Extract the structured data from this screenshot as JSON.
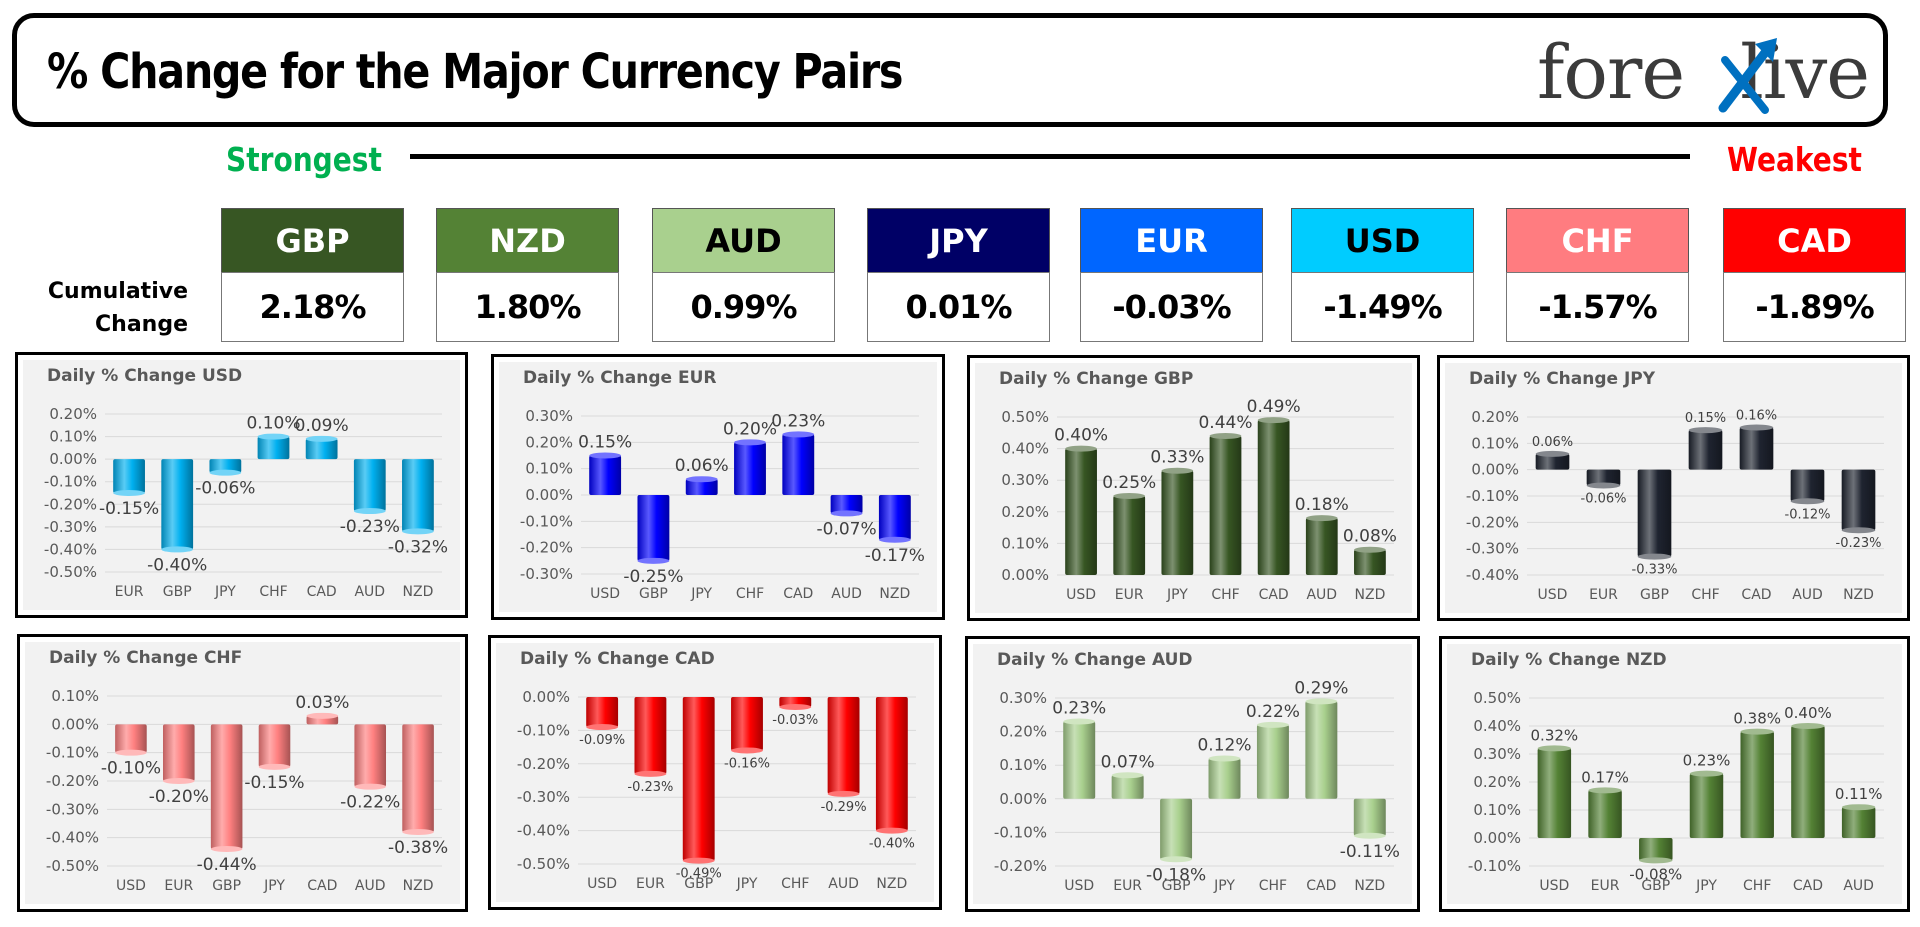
{
  "header": {
    "title": "% Change for the Major Currency Pairs",
    "logo_text_left": "fore",
    "logo_text_right": "live"
  },
  "strength": {
    "strongest": "Strongest",
    "weakest": "Weakest"
  },
  "cumulative": {
    "label_line1": "Cumulative",
    "label_line2": "Change",
    "currencies": [
      {
        "code": "GBP",
        "value": "2.18%",
        "bg": "#375623",
        "fg": "#ffffff"
      },
      {
        "code": "NZD",
        "value": "1.80%",
        "bg": "#548235",
        "fg": "#ffffff"
      },
      {
        "code": "AUD",
        "value": "0.99%",
        "bg": "#a9d08e",
        "fg": "#000000"
      },
      {
        "code": "JPY",
        "value": "0.01%",
        "bg": "#000066",
        "fg": "#ffffff"
      },
      {
        "code": "EUR",
        "value": "-0.03%",
        "bg": "#0066ff",
        "fg": "#ffffff"
      },
      {
        "code": "USD",
        "value": "-1.49%",
        "bg": "#00ccff",
        "fg": "#000000"
      },
      {
        "code": "CHF",
        "value": "-1.57%",
        "bg": "#ff7c80",
        "fg": "#ffffff"
      },
      {
        "code": "CAD",
        "value": "-1.89%",
        "bg": "#ff0000",
        "fg": "#ffffff"
      }
    ]
  },
  "chart_data": [
    {
      "type": "bar",
      "title": "Daily % Change USD",
      "color": "#00b0f0",
      "label_size": "large",
      "categories": [
        "EUR",
        "GBP",
        "JPY",
        "CHF",
        "CAD",
        "AUD",
        "NZD"
      ],
      "values": [
        -0.15,
        -0.4,
        -0.06,
        0.1,
        0.09,
        -0.23,
        -0.32
      ],
      "labels": [
        "-0.15%",
        "-0.40%",
        "-0.06%",
        "0.10%",
        "0.09%",
        "-0.23%",
        "-0.32%"
      ],
      "ylim": [
        -0.5,
        0.2
      ],
      "ystep": 0.1,
      "yticks": [
        "0.20%",
        "0.10%",
        "0.00%",
        "-0.10%",
        "-0.20%",
        "-0.30%",
        "-0.40%",
        "-0.50%"
      ]
    },
    {
      "type": "bar",
      "title": "Daily % Change EUR",
      "color": "#0000ff",
      "label_size": "large",
      "categories": [
        "USD",
        "GBP",
        "JPY",
        "CHF",
        "CAD",
        "AUD",
        "NZD"
      ],
      "values": [
        0.15,
        -0.25,
        0.06,
        0.2,
        0.23,
        -0.07,
        -0.17
      ],
      "labels": [
        "0.15%",
        "-0.25%",
        "0.06%",
        "0.20%",
        "0.23%",
        "-0.07%",
        "-0.17%"
      ],
      "ylim": [
        -0.3,
        0.3
      ],
      "ystep": 0.1,
      "yticks": [
        "0.30%",
        "0.20%",
        "0.10%",
        "0.00%",
        "-0.10%",
        "-0.20%",
        "-0.30%"
      ]
    },
    {
      "type": "bar",
      "title": "Daily % Change GBP",
      "color": "#375623",
      "label_size": "large",
      "categories": [
        "USD",
        "EUR",
        "JPY",
        "CHF",
        "CAD",
        "AUD",
        "NZD"
      ],
      "values": [
        0.4,
        0.25,
        0.33,
        0.44,
        0.49,
        0.18,
        0.08
      ],
      "labels": [
        "0.40%",
        "0.25%",
        "0.33%",
        "0.44%",
        "0.49%",
        "0.18%",
        "0.08%"
      ],
      "ylim": [
        0,
        0.5
      ],
      "ystep": 0.1,
      "yticks": [
        "0.50%",
        "0.40%",
        "0.30%",
        "0.20%",
        "0.10%",
        "0.00%"
      ]
    },
    {
      "type": "bar",
      "title": "Daily % Change JPY",
      "color": "#1f2430",
      "label_size": "small",
      "categories": [
        "USD",
        "EUR",
        "GBP",
        "CHF",
        "CAD",
        "AUD",
        "NZD"
      ],
      "values": [
        0.06,
        -0.06,
        -0.33,
        0.15,
        0.16,
        -0.12,
        -0.23
      ],
      "labels": [
        "0.06%",
        "-0.06%",
        "-0.33%",
        "0.15%",
        "0.16%",
        "-0.12%",
        "-0.23%"
      ],
      "ylim": [
        -0.4,
        0.2
      ],
      "ystep": 0.1,
      "yticks": [
        "0.20%",
        "0.10%",
        "0.00%",
        "-0.10%",
        "-0.20%",
        "-0.30%",
        "-0.40%"
      ]
    },
    {
      "type": "bar",
      "title": "Daily % Change CHF",
      "color": "#ff8080",
      "label_size": "large",
      "categories": [
        "USD",
        "EUR",
        "GBP",
        "JPY",
        "CAD",
        "AUD",
        "NZD"
      ],
      "values": [
        -0.1,
        -0.2,
        -0.44,
        -0.15,
        0.03,
        -0.22,
        -0.38
      ],
      "labels": [
        "-0.10%",
        "-0.20%",
        "-0.44%",
        "-0.15%",
        "0.03%",
        "-0.22%",
        "-0.38%"
      ],
      "ylim": [
        -0.5,
        0.1
      ],
      "ystep": 0.1,
      "yticks": [
        "0.10%",
        "0.00%",
        "-0.10%",
        "-0.20%",
        "-0.30%",
        "-0.40%",
        "-0.50%"
      ]
    },
    {
      "type": "bar",
      "title": "Daily % Change CAD",
      "color": "#ff0000",
      "label_size": "small",
      "categories": [
        "USD",
        "EUR",
        "GBP",
        "JPY",
        "CHF",
        "AUD",
        "NZD"
      ],
      "values": [
        -0.09,
        -0.23,
        -0.49,
        -0.16,
        -0.03,
        -0.29,
        -0.4
      ],
      "labels": [
        "-0.09%",
        "-0.23%",
        "-0.49%",
        "-0.16%",
        "-0.03%",
        "-0.29%",
        "-0.40%"
      ],
      "ylim": [
        -0.5,
        0
      ],
      "ystep": 0.1,
      "yticks": [
        "0.00%",
        "-0.10%",
        "-0.20%",
        "-0.30%",
        "-0.40%",
        "-0.50%"
      ]
    },
    {
      "type": "bar",
      "title": "Daily % Change AUD",
      "color": "#a9d08e",
      "label_size": "large",
      "categories": [
        "USD",
        "EUR",
        "GBP",
        "JPY",
        "CHF",
        "CAD",
        "NZD"
      ],
      "values": [
        0.23,
        0.07,
        -0.18,
        0.12,
        0.22,
        0.29,
        -0.11
      ],
      "labels": [
        "0.23%",
        "0.07%",
        "-0.18%",
        "0.12%",
        "0.22%",
        "0.29%",
        "-0.11%"
      ],
      "ylim": [
        -0.2,
        0.3
      ],
      "ystep": 0.1,
      "yticks": [
        "0.30%",
        "0.20%",
        "0.10%",
        "0.00%",
        "-0.10%",
        "-0.20%"
      ]
    },
    {
      "type": "bar",
      "title": "Daily % Change NZD",
      "color": "#548235",
      "label_size": "medium",
      "categories": [
        "USD",
        "EUR",
        "GBP",
        "JPY",
        "CHF",
        "CAD",
        "AUD"
      ],
      "values": [
        0.32,
        0.17,
        -0.08,
        0.23,
        0.38,
        0.4,
        0.11
      ],
      "labels": [
        "0.32%",
        "0.17%",
        "-0.08%",
        "0.23%",
        "0.38%",
        "0.40%",
        "0.11%"
      ],
      "ylim": [
        -0.1,
        0.5
      ],
      "ystep": 0.1,
      "yticks": [
        "0.50%",
        "0.40%",
        "0.30%",
        "0.20%",
        "0.10%",
        "0.00%",
        "-0.10%"
      ]
    }
  ]
}
